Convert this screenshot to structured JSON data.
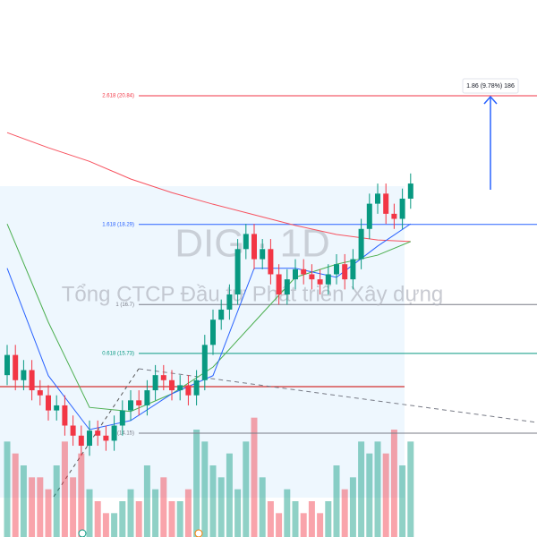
{
  "chart_data": {
    "type": "candlestick",
    "watermark_title": "DIG · 1D",
    "watermark_subtitle": "Tổng CTCP Đầu tư Phát triển Xây dựng",
    "annotation": "1.86 (9.78%) 186",
    "ylim": [
      12.09,
      22.74
    ],
    "up_color": "#089981",
    "down_color": "#f23645",
    "open": [
      15.3,
      15.7,
      15.2,
      15.4,
      15.0,
      14.9,
      14.6,
      14.7,
      14.3,
      14.1,
      13.9,
      14.2,
      14.1,
      14.0,
      14.3,
      14.6,
      14.8,
      14.7,
      15.0,
      15.3,
      15.2,
      15.0,
      15.1,
      14.9,
      15.2,
      15.9,
      16.4,
      16.6,
      16.9,
      17.8,
      18.1,
      17.6,
      17.8,
      17.3,
      16.9,
      17.2,
      17.4,
      17.3,
      17.2,
      17.1,
      17.3,
      17.5,
      17.2,
      17.6,
      18.2,
      18.7,
      18.9,
      18.5,
      18.4,
      18.8
    ],
    "high": [
      15.9,
      15.9,
      15.6,
      15.6,
      15.2,
      15.1,
      14.9,
      14.9,
      14.5,
      14.3,
      14.4,
      14.4,
      14.3,
      14.5,
      14.8,
      15.0,
      15.0,
      15.2,
      15.5,
      15.5,
      15.4,
      15.3,
      15.3,
      15.4,
      16.1,
      16.6,
      16.8,
      17.1,
      18.0,
      18.3,
      18.3,
      18.0,
      18.0,
      17.5,
      17.4,
      17.6,
      17.6,
      17.5,
      17.4,
      17.5,
      17.7,
      17.7,
      17.8,
      18.4,
      18.9,
      19.1,
      19.1,
      18.7,
      19.0,
      19.3
    ],
    "low": [
      15.1,
      15.0,
      15.0,
      14.8,
      14.7,
      14.4,
      14.4,
      14.1,
      13.9,
      13.7,
      13.7,
      13.9,
      13.8,
      13.8,
      14.1,
      14.4,
      14.5,
      14.5,
      14.8,
      15.0,
      14.8,
      14.8,
      14.7,
      14.7,
      15.0,
      15.7,
      16.2,
      16.4,
      16.7,
      17.6,
      17.4,
      17.4,
      17.1,
      16.7,
      16.7,
      17.0,
      17.1,
      17.0,
      16.9,
      16.9,
      17.1,
      17.0,
      17.0,
      17.4,
      18.0,
      18.5,
      18.3,
      18.2,
      18.2,
      18.6
    ],
    "close": [
      15.7,
      15.2,
      15.4,
      15.0,
      14.9,
      14.6,
      14.7,
      14.3,
      14.1,
      13.9,
      14.2,
      14.1,
      14.0,
      14.3,
      14.6,
      14.8,
      14.7,
      15.0,
      15.3,
      15.2,
      15.0,
      15.1,
      14.9,
      15.2,
      15.9,
      16.4,
      16.6,
      16.9,
      17.8,
      18.1,
      17.6,
      17.8,
      17.3,
      16.9,
      17.2,
      17.4,
      17.3,
      17.2,
      17.1,
      17.3,
      17.5,
      17.2,
      17.6,
      18.2,
      18.7,
      18.9,
      18.5,
      18.4,
      18.8,
      19.1
    ],
    "volume": [
      8,
      7,
      6,
      5,
      5,
      4,
      6,
      8,
      5,
      7,
      4,
      3,
      2,
      2,
      3,
      4,
      3,
      6,
      4,
      5,
      3,
      3,
      4,
      9,
      8,
      6,
      5,
      7,
      4,
      8,
      10,
      5,
      3,
      2,
      4,
      3,
      2,
      3,
      2,
      3,
      6,
      4,
      5,
      8,
      7,
      8,
      7,
      9,
      6,
      8
    ],
    "volume_lim": [
      0,
      12
    ],
    "moving_averages": [
      {
        "color": "#f7525f",
        "x": [
          0,
          5,
          10,
          15,
          20,
          25,
          30,
          35,
          40,
          45,
          49
        ],
        "values": [
          20.11,
          19.81,
          19.54,
          19.19,
          18.92,
          18.69,
          18.48,
          18.27,
          18.09,
          17.98,
          17.95
        ]
      },
      {
        "color": "#4caf50",
        "x": [
          0,
          5,
          10,
          15,
          20,
          25,
          30,
          35,
          40,
          45,
          49
        ],
        "values": [
          18.3,
          16.35,
          14.66,
          14.58,
          14.93,
          15.46,
          16.35,
          17.24,
          17.5,
          17.68,
          17.95
        ]
      },
      {
        "color": "#2962ff",
        "x": [
          0,
          5,
          10,
          15,
          20,
          25,
          30,
          35,
          40,
          45,
          49
        ],
        "values": [
          17.42,
          15.29,
          14.22,
          14.4,
          14.93,
          15.29,
          17.42,
          17.42,
          17.24,
          17.86,
          18.3
        ]
      }
    ],
    "fib_levels": [
      {
        "value": 20.84,
        "label": "2.618 (20.84)",
        "color": "#f23645"
      },
      {
        "value": 18.29,
        "label": "1.618 (18.29)",
        "color": "#2962ff"
      },
      {
        "value": 16.7,
        "label": "1 (16.7)",
        "color": "#787b86"
      },
      {
        "value": 15.73,
        "label": "0.618 (15.73)",
        "color": "#089981"
      },
      {
        "value": 14.15,
        "label": "0 (14.15)",
        "color": "#787b86"
      }
    ]
  }
}
